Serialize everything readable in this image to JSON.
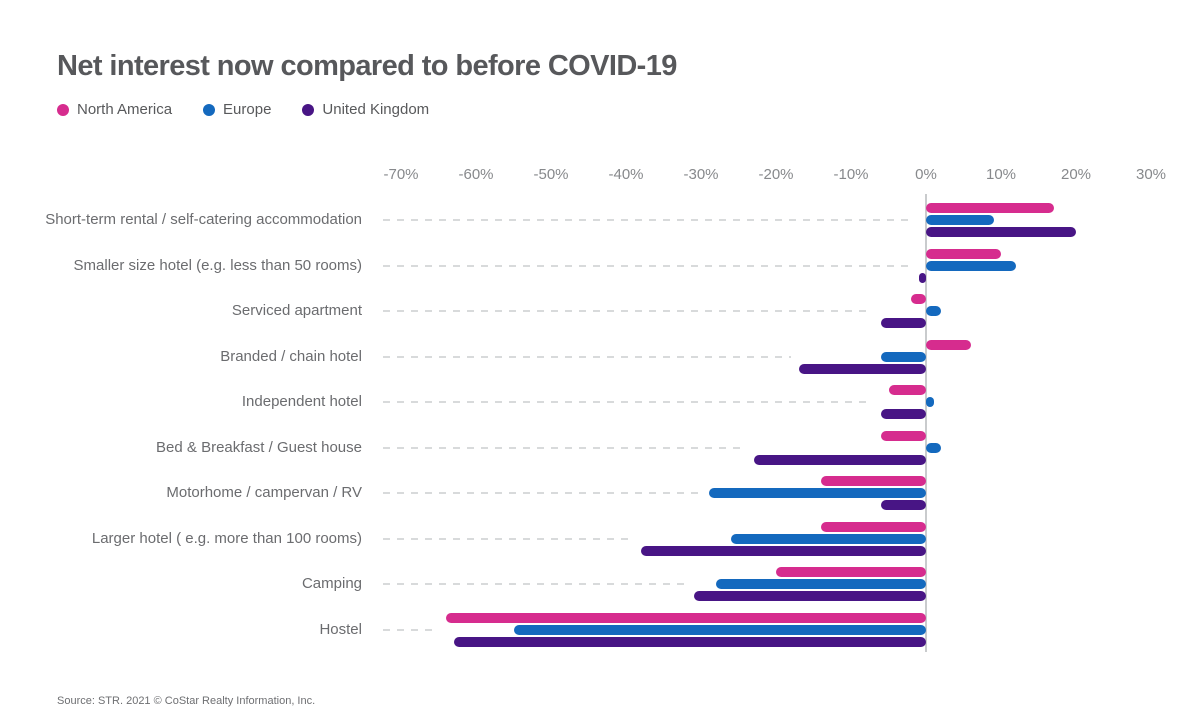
{
  "header": {
    "title": "Net interest now compared to before COVID-19"
  },
  "chart_data": {
    "type": "bar",
    "orientation": "horizontal",
    "title": "Net interest now compared to before COVID-19",
    "xlabel": "",
    "ylabel": "",
    "xlim": [
      -70,
      30
    ],
    "x_ticks": [
      "-70%",
      "-60%",
      "-50%",
      "-40%",
      "-30%",
      "-20%",
      "-10%",
      "0%",
      "10%",
      "20%",
      "30%"
    ],
    "x_tick_values": [
      -70,
      -60,
      -50,
      -40,
      -30,
      -20,
      -10,
      0,
      10,
      20,
      30
    ],
    "grid": "none",
    "legend_position": "top-left",
    "unit": "percent",
    "categories": [
      "Short-term rental / self-catering accommodation",
      "Smaller size hotel (e.g. less than 50 rooms)",
      "Serviced apartment",
      "Branded / chain hotel",
      "Independent hotel",
      "Bed & Breakfast / Guest house",
      "Motorhome / campervan / RV",
      "Larger hotel ( e.g. more than 100 rooms)",
      "Camping",
      "Hostel"
    ],
    "series": [
      {
        "name": "North America",
        "color": "#D62C8E",
        "values": [
          17,
          10,
          -2,
          6,
          -5,
          -6,
          -14,
          -14,
          -20,
          -64
        ]
      },
      {
        "name": "Europe",
        "color": "#1469BE",
        "values": [
          9,
          12,
          2,
          -6,
          1,
          2,
          -29,
          -26,
          -28,
          -55
        ]
      },
      {
        "name": "United Kingdom",
        "color": "#481585",
        "values": [
          20,
          -1,
          -6,
          -17,
          -6,
          -23,
          -6,
          -38,
          -31,
          -63
        ]
      }
    ]
  },
  "footer": {
    "source": "Source: STR. 2021 © CoStar Realty Information, Inc."
  }
}
